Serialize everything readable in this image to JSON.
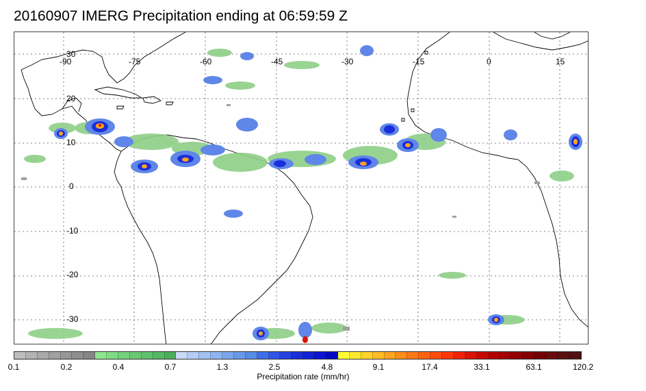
{
  "title": "20160907 IMERG Precipitation ending at 06:59:59 Z",
  "map": {
    "lon_labels": [
      "-90",
      "-75",
      "-60",
      "-45",
      "-30",
      "-15",
      "0",
      "15"
    ],
    "lat_labels": [
      "30",
      "20",
      "10",
      "0",
      "-10",
      "-20",
      "-30"
    ],
    "coastline_color": "#000000",
    "grid_style": "dotted"
  },
  "colorbar": {
    "title": "Precipitation rate (mm/hr)",
    "tick_labels": [
      "0.1",
      "0.2",
      "0.4",
      "0.7",
      "1.3",
      "2.5",
      "4.8",
      "9.1",
      "17.4",
      "33.1",
      "63.1",
      "120.2"
    ],
    "colors": [
      "#bdbdbd",
      "#b3b3b3",
      "#a9a9a9",
      "#a0a0a0",
      "#979797",
      "#8e8e8e",
      "#868686",
      "#8ee58e",
      "#7fdc84",
      "#74d27c",
      "#69c873",
      "#5ec06b",
      "#55b763",
      "#4cae5c",
      "#c7d9f7",
      "#b5cdf5",
      "#a2c1f3",
      "#8fb4f0",
      "#7ca6ed",
      "#6999e9",
      "#568be6",
      "#3f6ee8",
      "#3156e6",
      "#2541e0",
      "#1a2fdb",
      "#1321d6",
      "#0b15cf",
      "#0409c4",
      "#ffff33",
      "#ffe92e",
      "#ffd229",
      "#ffbb24",
      "#ffa41f",
      "#ff8d1a",
      "#ff7715",
      "#ff6110",
      "#ff4c0c",
      "#ff3808",
      "#f02305",
      "#dc1203",
      "#c80803",
      "#b30000",
      "#a30000",
      "#930000",
      "#830000",
      "#730000",
      "#670c0c",
      "#5b1010",
      "#501212"
    ]
  }
}
